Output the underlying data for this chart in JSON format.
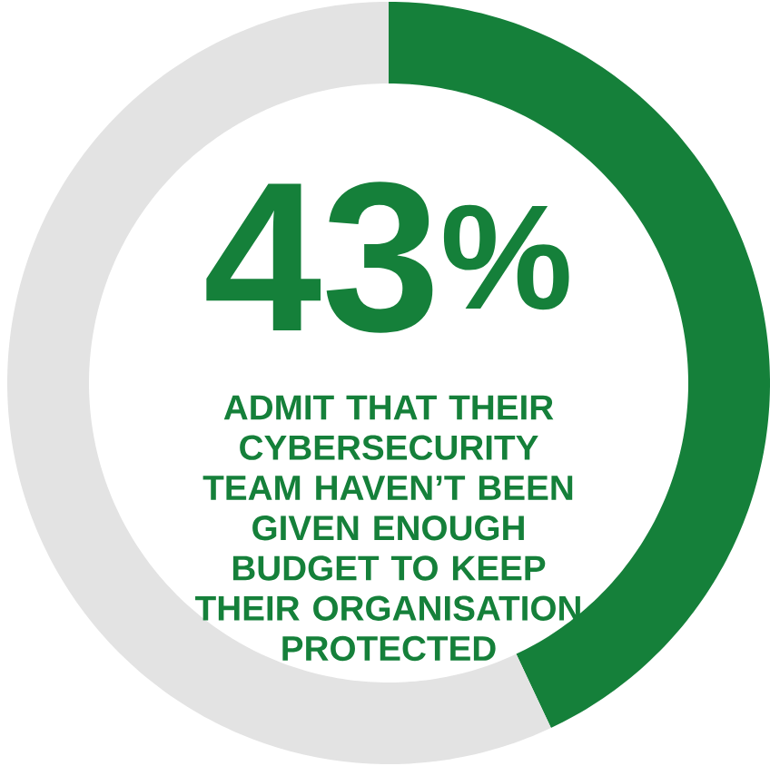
{
  "chart_data": {
    "type": "donut",
    "categories": [
      null,
      null
    ],
    "values": [
      43,
      57
    ],
    "colors": [
      "#15803a",
      "#e3e3e3"
    ],
    "value_labels": [
      "43$^{%}$",
      null
    ],
    "annotations": [
      "ADMIT THAT THEIR CYBERSECURITY TEAM HAVEN’T BEEN GIVEN ENOUGH BUDGET TO KEEP THEIR ORGANISATION PROTECTED"
    ]
  }
}
